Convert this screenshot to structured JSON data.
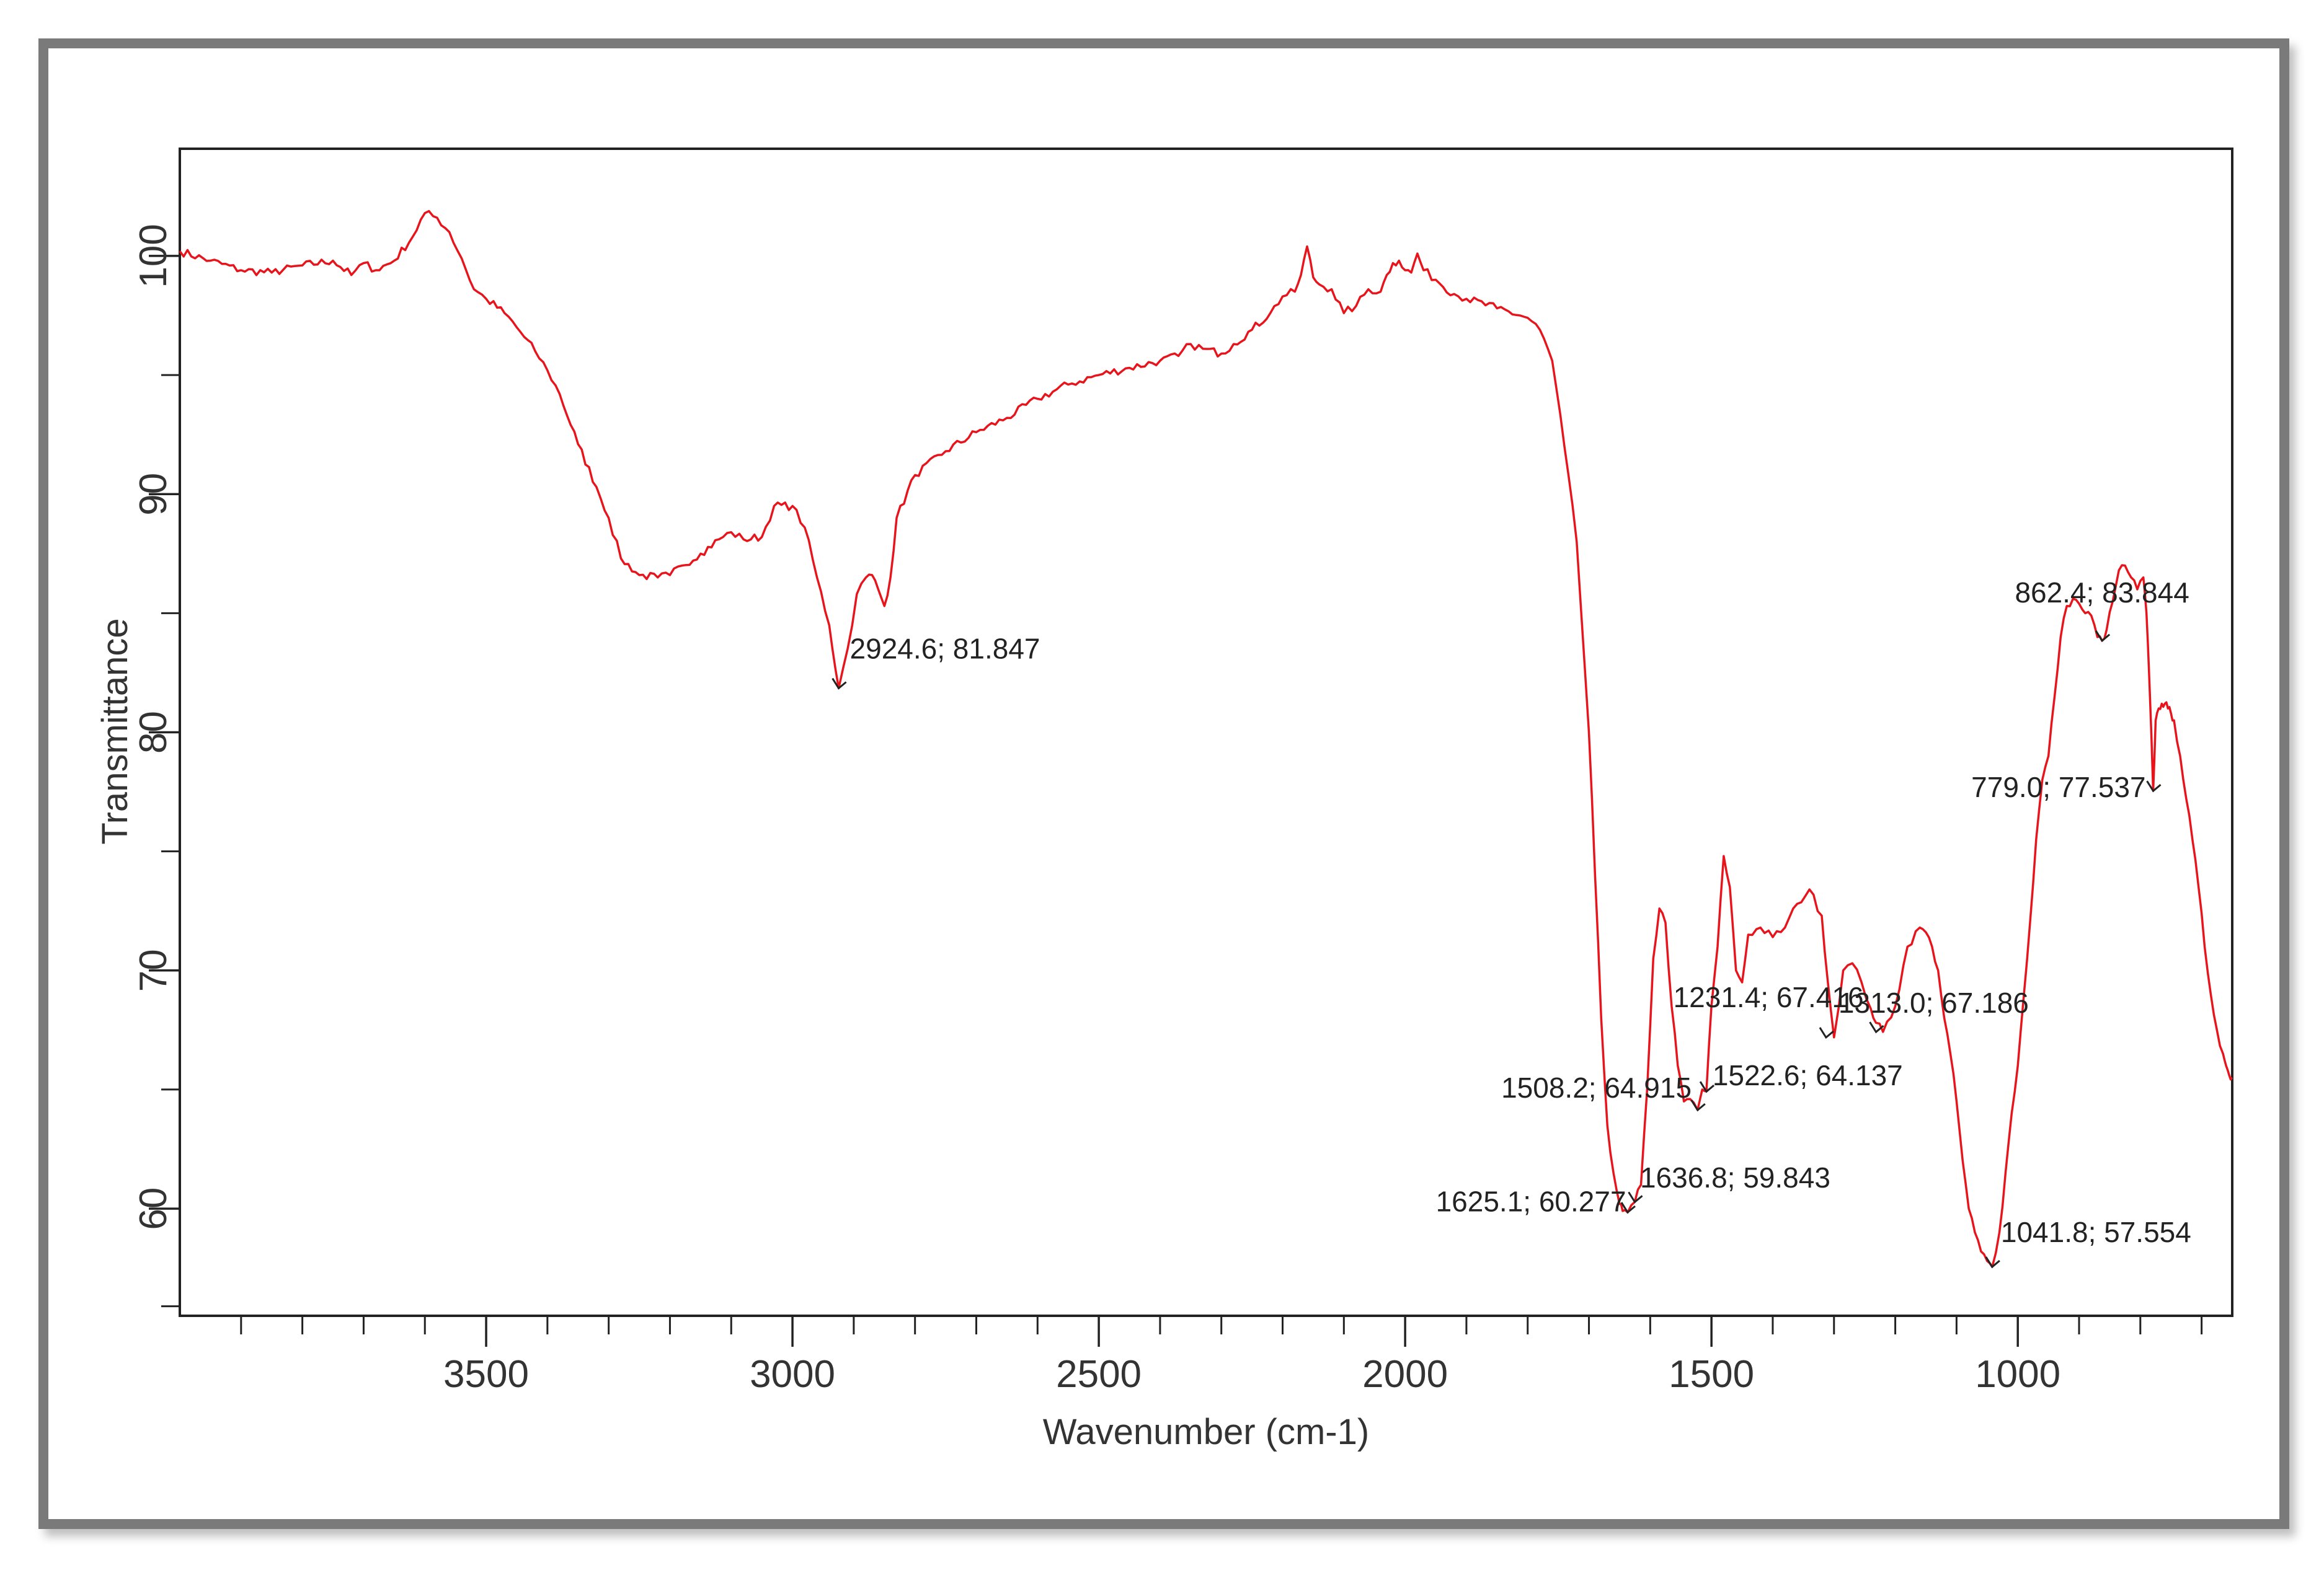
{
  "colors": {
    "line": "#e8141c",
    "axis": "#222222",
    "frame": "#7a7a7a"
  },
  "chart_data": {
    "type": "line",
    "title": "",
    "xlabel": "Wavenumber (cm-1)",
    "ylabel": "Transmittance",
    "xlim": [
      4000,
      650
    ],
    "ylim": [
      55.5,
      104.5
    ],
    "x_reversed": true,
    "grid": false,
    "xticks": [
      3500,
      3000,
      2500,
      2000,
      1500,
      1000
    ],
    "yticks": [
      60,
      70,
      80,
      90,
      100
    ],
    "series": [
      {
        "x": [
          4000,
          3950,
          3900,
          3850,
          3800,
          3750,
          3720,
          3700,
          3680,
          3650,
          3620,
          3600,
          3580,
          3560,
          3540,
          3520,
          3500,
          3470,
          3450,
          3420,
          3400,
          3380,
          3350,
          3320,
          3300,
          3280,
          3250,
          3220,
          3200,
          3180,
          3150,
          3120,
          3100,
          3080,
          3050,
          3030,
          3000,
          2980,
          2960,
          2940,
          2924.6,
          2910,
          2895,
          2880,
          2870,
          2860,
          2850,
          2840,
          2830,
          2800,
          2750,
          2700,
          2650,
          2600,
          2550,
          2500,
          2450,
          2400,
          2370,
          2350,
          2330,
          2300,
          2280,
          2250,
          2220,
          2200,
          2180,
          2170,
          2160,
          2150,
          2140,
          2120,
          2100,
          2080,
          2060,
          2040,
          2030,
          2020,
          2010,
          2000,
          1990,
          1980,
          1970,
          1950,
          1920,
          1900,
          1850,
          1800,
          1780,
          1760,
          1740,
          1720,
          1700,
          1690,
          1680,
          1670,
          1660,
          1650,
          1645,
          1636.8,
          1625.1,
          1615,
          1605,
          1595,
          1585,
          1575,
          1565,
          1555,
          1545,
          1535,
          1522.6,
          1515,
          1508.2,
          1500,
          1490,
          1480,
          1470,
          1460,
          1450,
          1440,
          1420,
          1400,
          1380,
          1360,
          1340,
          1320,
          1310,
          1300,
          1285,
          1270,
          1255,
          1240,
          1231.4,
          1220,
          1200,
          1180,
          1160,
          1150,
          1140,
          1130,
          1120,
          1110,
          1100,
          1090,
          1080,
          1070,
          1060,
          1050,
          1041.8,
          1030,
          1020,
          1010,
          1000,
          990,
          980,
          970,
          960,
          950,
          940,
          930,
          920,
          910,
          900,
          890,
          880,
          870,
          862.4,
          855,
          845,
          835,
          825,
          815,
          805,
          795,
          790,
          785,
          779,
          775,
          770,
          765,
          760,
          755,
          750,
          745,
          735,
          725,
          715,
          705,
          695,
          685,
          675,
          665,
          660,
          655,
          650
        ],
        "y": [
          100.2,
          99.8,
          99.4,
          99.3,
          99.6,
          99.8,
          99.2,
          99.7,
          99.4,
          99.8,
          100.8,
          101.8,
          101.6,
          101.0,
          99.9,
          98.6,
          98.2,
          97.6,
          97.0,
          96.0,
          95.2,
          94.2,
          92.1,
          90.3,
          89.0,
          87.3,
          86.6,
          86.5,
          86.6,
          87.0,
          87.5,
          88.1,
          88.4,
          88.1,
          88.2,
          89.5,
          89.5,
          88.6,
          86.5,
          84.5,
          81.85,
          83.5,
          85.8,
          86.5,
          86.6,
          86.0,
          85.3,
          86.5,
          89.0,
          90.8,
          91.8,
          92.6,
          93.2,
          94.0,
          94.6,
          95.0,
          95.3,
          95.6,
          95.8,
          96.3,
          96.1,
          95.9,
          96.3,
          96.9,
          97.6,
          98.3,
          98.5,
          99.2,
          100.4,
          99.1,
          98.8,
          98.6,
          97.6,
          97.9,
          98.6,
          98.5,
          99.2,
          99.7,
          99.8,
          99.4,
          99.3,
          100.1,
          99.4,
          99.0,
          98.4,
          98.2,
          97.8,
          97.4,
          96.9,
          95.6,
          92.0,
          88.0,
          80.0,
          74.0,
          68.0,
          63.5,
          61.5,
          60.2,
          59.9,
          59.84,
          60.28,
          61.0,
          65.0,
          70.5,
          72.6,
          72.0,
          68.5,
          66.0,
          64.5,
          64.6,
          64.14,
          65.0,
          64.92,
          68.5,
          71.0,
          74.8,
          73.5,
          70.0,
          69.5,
          71.5,
          71.8,
          71.4,
          71.8,
          72.8,
          73.4,
          72.3,
          69.5,
          67.19,
          70.0,
          70.3,
          69.5,
          68.4,
          67.8,
          67.42,
          68.5,
          71.0,
          71.8,
          71.6,
          71.0,
          70.0,
          68.0,
          66.5,
          64.5,
          62.0,
          60.0,
          59.0,
          58.2,
          57.8,
          57.554,
          59.0,
          61.5,
          64.0,
          66.0,
          69.0,
          72.0,
          75.5,
          78.0,
          79.0,
          81.5,
          84.0,
          85.3,
          85.6,
          85.4,
          85.0,
          84.9,
          84.0,
          83.84,
          84.3,
          85.5,
          86.8,
          87.0,
          86.5,
          86.0,
          86.5,
          85.0,
          82.0,
          77.537,
          80.5,
          81.0,
          81.2,
          81.2,
          81.0,
          80.8,
          80.5,
          79.0,
          77.2,
          75.5,
          73.5,
          71.0,
          69.0,
          67.5,
          66.5,
          66.0,
          65.6,
          65.5
        ]
      }
    ],
    "annotations": [
      {
        "text": "2924.6; 81.847",
        "x": 2924.6,
        "y": 81.847
      },
      {
        "text": "862.4; 83.844",
        "x": 862.4,
        "y": 83.844
      },
      {
        "text": "779.0; 77.537",
        "x": 779.0,
        "y": 77.537
      },
      {
        "text": "1231.4; 67.416",
        "x": 1231.4,
        "y": 67.416
      },
      {
        "text": "1313.0; 67.186",
        "x": 1313.0,
        "y": 67.186
      },
      {
        "text": "1508.2; 64.915",
        "x": 1508.2,
        "y": 64.915
      },
      {
        "text": "1522.6; 64.137",
        "x": 1522.6,
        "y": 64.137
      },
      {
        "text": "1636.8; 59.843",
        "x": 1636.8,
        "y": 59.843
      },
      {
        "text": "1625.1; 60.277",
        "x": 1625.1,
        "y": 60.277
      },
      {
        "text": "1041.8; 57.554",
        "x": 1041.8,
        "y": 57.554
      }
    ]
  }
}
